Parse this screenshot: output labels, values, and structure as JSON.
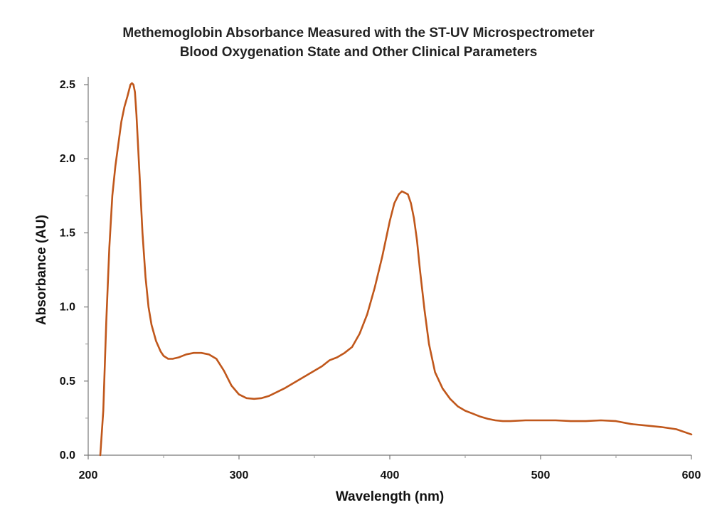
{
  "chart_data": {
    "type": "line",
    "title": "Methemoglobin Absorbance Measured with the ST-UV Microspectrometer",
    "subtitle": "Blood Oxygenation State and Other Clinical Parameters",
    "xlabel": "Wavelength (nm)",
    "ylabel": "Absorbance (AU)",
    "xlim": [
      200,
      600
    ],
    "ylim": [
      0,
      2.5
    ],
    "x_ticks": [
      "200",
      "300",
      "400",
      "500",
      "600"
    ],
    "y_ticks": [
      "0.0",
      "0.5",
      "1.0",
      "1.5",
      "2.0",
      "2.5"
    ],
    "grid": false,
    "legend": "none",
    "series": [
      {
        "color": "#c0571b",
        "x": [
          208,
          210,
          212,
          214,
          216,
          218,
          220,
          222,
          224,
          226,
          228,
          229,
          230,
          231,
          232,
          234,
          236,
          238,
          240,
          242,
          245,
          248,
          250,
          253,
          256,
          260,
          265,
          270,
          275,
          280,
          285,
          290,
          295,
          300,
          305,
          310,
          315,
          320,
          330,
          340,
          350,
          355,
          360,
          365,
          370,
          375,
          380,
          385,
          390,
          395,
          400,
          403,
          406,
          408,
          410,
          412,
          414,
          416,
          418,
          420,
          423,
          426,
          430,
          435,
          440,
          445,
          450,
          455,
          460,
          465,
          470,
          475,
          480,
          490,
          500,
          510,
          520,
          530,
          540,
          550,
          560,
          570,
          580,
          590,
          600
        ],
        "y": [
          0.0,
          0.3,
          0.9,
          1.4,
          1.75,
          1.95,
          2.1,
          2.25,
          2.35,
          2.42,
          2.5,
          2.51,
          2.5,
          2.45,
          2.3,
          1.9,
          1.5,
          1.2,
          1.0,
          0.88,
          0.77,
          0.7,
          0.67,
          0.65,
          0.65,
          0.66,
          0.68,
          0.69,
          0.69,
          0.68,
          0.65,
          0.57,
          0.47,
          0.41,
          0.385,
          0.38,
          0.385,
          0.4,
          0.45,
          0.51,
          0.57,
          0.6,
          0.64,
          0.66,
          0.69,
          0.73,
          0.82,
          0.95,
          1.13,
          1.34,
          1.58,
          1.7,
          1.76,
          1.78,
          1.77,
          1.76,
          1.7,
          1.6,
          1.45,
          1.25,
          0.98,
          0.75,
          0.56,
          0.45,
          0.38,
          0.33,
          0.3,
          0.28,
          0.26,
          0.245,
          0.235,
          0.23,
          0.23,
          0.235,
          0.235,
          0.235,
          0.23,
          0.23,
          0.235,
          0.23,
          0.21,
          0.2,
          0.19,
          0.175,
          0.14
        ]
      }
    ]
  }
}
